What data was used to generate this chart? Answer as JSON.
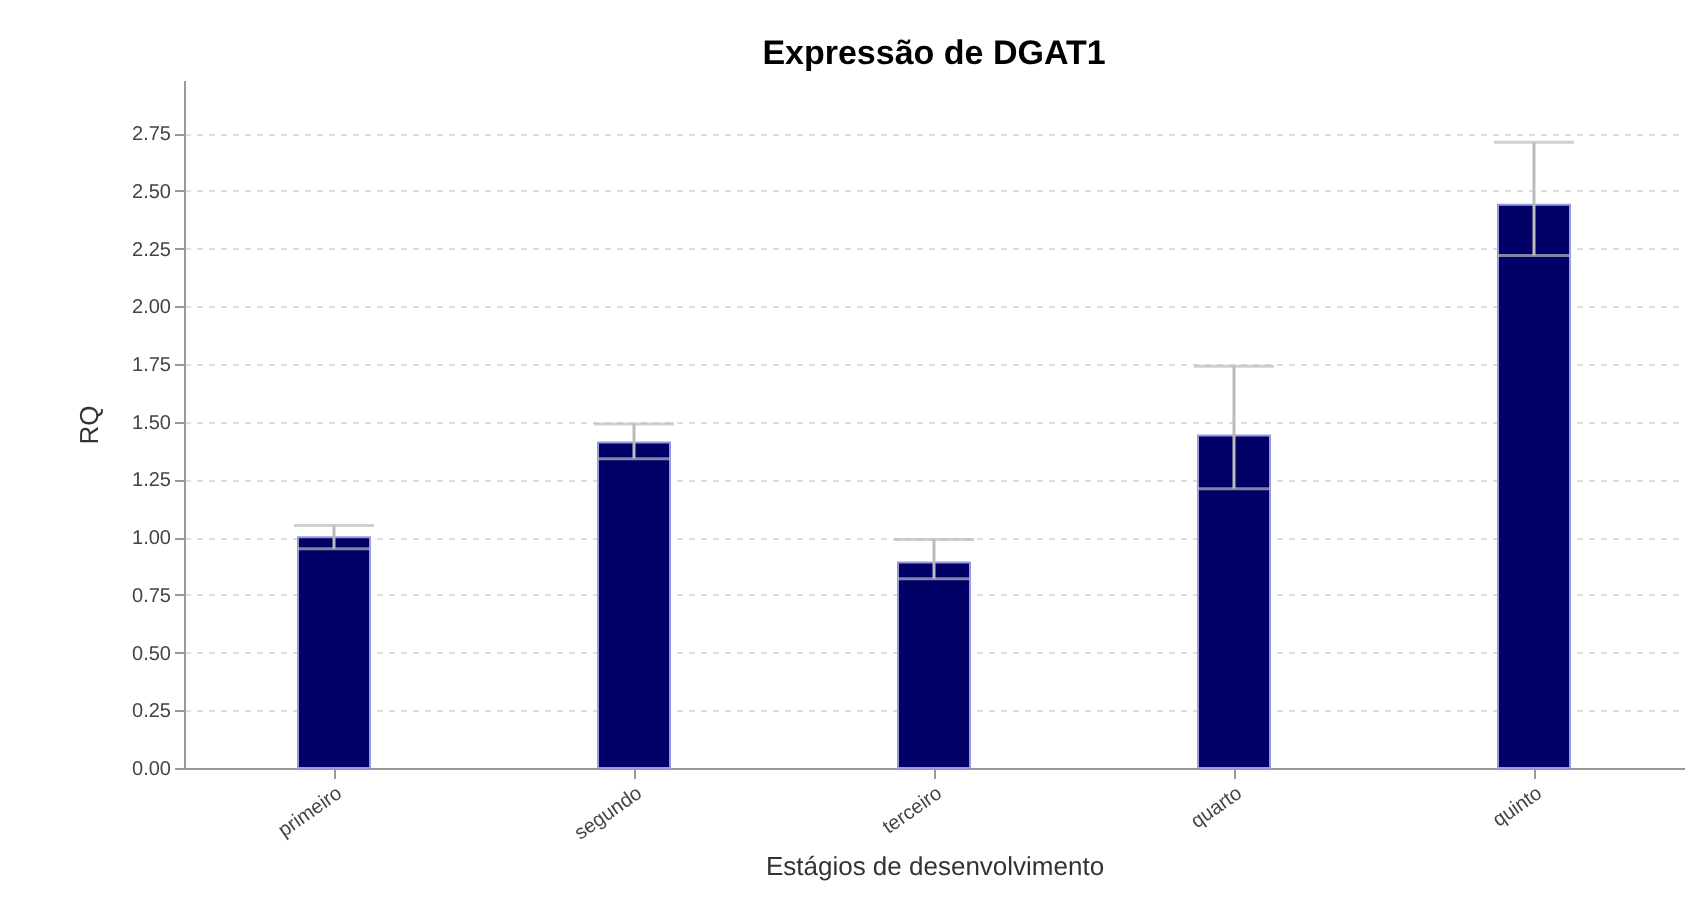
{
  "chart_data": {
    "type": "bar",
    "title": "Expressão de DGAT1",
    "xlabel": "Estágios de desenvolvimento",
    "ylabel": "RQ",
    "categories": [
      "primeiro",
      "segundo",
      "terceiro",
      "quarto",
      "quinto"
    ],
    "values": [
      1.0,
      1.41,
      0.89,
      1.44,
      2.44
    ],
    "errors": [
      [
        0.95,
        1.05
      ],
      [
        1.34,
        1.49
      ],
      [
        0.82,
        0.99
      ],
      [
        1.21,
        1.74
      ],
      [
        2.22,
        2.71
      ]
    ],
    "color": "#000066",
    "ylim": [
      0,
      2.98
    ],
    "yticks": [
      {
        "value": 0,
        "label": "0.00"
      },
      {
        "value": 0.25,
        "label": "0.25"
      },
      {
        "value": 0.5,
        "label": "0.50"
      },
      {
        "value": 0.75,
        "label": "0.75"
      },
      {
        "value": 1,
        "label": "1.00"
      },
      {
        "value": 1.25,
        "label": "1.25"
      },
      {
        "value": 1.5,
        "label": "1.50"
      },
      {
        "value": 1.75,
        "label": "1.75"
      },
      {
        "value": 2,
        "label": "2.00"
      },
      {
        "value": 2.25,
        "label": "2.25"
      },
      {
        "value": 2.5,
        "label": "2.50"
      },
      {
        "value": 2.75,
        "label": "2.75"
      }
    ],
    "grid": "y"
  }
}
